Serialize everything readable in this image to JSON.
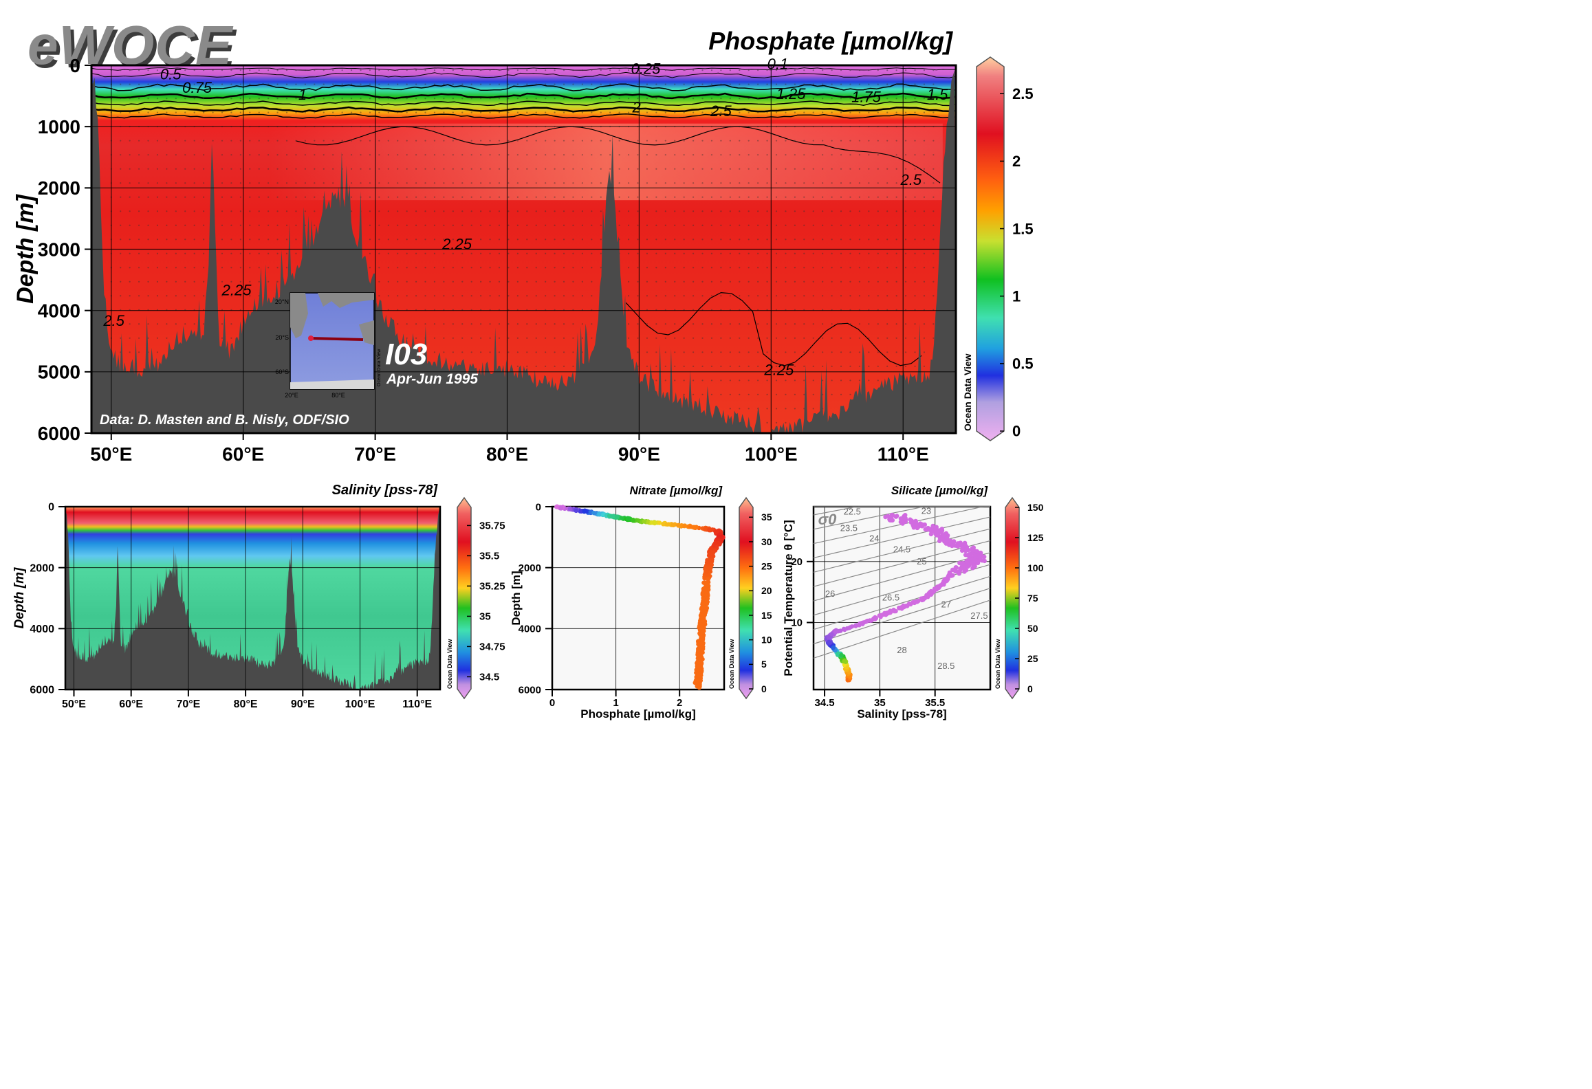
{
  "logo": "eWOCE",
  "chart_data": [
    {
      "id": "main-section",
      "type": "heatmap",
      "title": "Phosphate [µmol/kg]",
      "ylabel": "Depth [m]",
      "xlabel": "",
      "xlim": [
        48.5,
        114
      ],
      "ylim": [
        6000,
        0
      ],
      "x_ticks": [
        "50°E",
        "60°E",
        "70°E",
        "80°E",
        "90°E",
        "100°E",
        "110°E"
      ],
      "x_tick_values": [
        50,
        60,
        70,
        80,
        90,
        100,
        110
      ],
      "y_ticks": [
        "0",
        "1000",
        "2000",
        "3000",
        "4000",
        "5000",
        "6000"
      ],
      "y_tick_values": [
        0,
        1000,
        2000,
        3000,
        4000,
        5000,
        6000
      ],
      "colorbar": {
        "min": 0,
        "max": 2.7,
        "ticks": [
          "0",
          "0.5",
          "1",
          "1.5",
          "2",
          "2.5"
        ],
        "tick_values": [
          0,
          0.5,
          1,
          1.5,
          2,
          2.5
        ],
        "credit": "Ocean Data View"
      },
      "contour_labels": [
        {
          "text": "0.5",
          "x": 54.5,
          "depth": 230
        },
        {
          "text": "0.75",
          "x": 56.5,
          "depth": 450
        },
        {
          "text": "1",
          "x": 64.5,
          "depth": 560
        },
        {
          "text": "0.25",
          "x": 90.5,
          "depth": 140
        },
        {
          "text": "0.1",
          "x": 100.5,
          "depth": 60
        },
        {
          "text": "1.25",
          "x": 101.5,
          "depth": 550
        },
        {
          "text": "1.75",
          "x": 107.2,
          "depth": 600
        },
        {
          "text": "1.5",
          "x": 112.6,
          "depth": 560
        },
        {
          "text": "2",
          "x": 89.8,
          "depth": 770
        },
        {
          "text": "2.5",
          "x": 96.2,
          "depth": 830
        },
        {
          "text": "2.5",
          "x": 110.6,
          "depth": 1950
        },
        {
          "text": "2.25",
          "x": 76.2,
          "depth": 3000
        },
        {
          "text": "2.25",
          "x": 100.6,
          "depth": 5050
        },
        {
          "text": "2.25",
          "x": 59.5,
          "depth": 3750
        },
        {
          "text": "2.5",
          "x": 50.2,
          "depth": 4250
        }
      ],
      "credit": "Data: D. Masten and B. Nisly, ODF/SIO",
      "cruise": {
        "name": "I03",
        "dates": "Apr-Jun 1995"
      },
      "inset_map": {
        "lat_ticks": [
          "20°N",
          "20°S",
          "60°S"
        ],
        "lon_ticks": [
          "20°E",
          "80°E"
        ],
        "credit": "Ocean Data View"
      }
    },
    {
      "id": "salinity-section",
      "type": "heatmap",
      "title": "Salinity [pss-78]",
      "ylabel": "Depth [m]",
      "xlabel": "",
      "xlim": [
        48.5,
        114
      ],
      "ylim": [
        6000,
        0
      ],
      "x_ticks": [
        "50°E",
        "60°E",
        "70°E",
        "80°E",
        "90°E",
        "100°E",
        "110°E"
      ],
      "x_tick_values": [
        50,
        60,
        70,
        80,
        90,
        100,
        110
      ],
      "y_ticks": [
        "0",
        "2000",
        "4000",
        "6000"
      ],
      "y_tick_values": [
        0,
        2000,
        4000,
        6000
      ],
      "colorbar": {
        "min": 34.4,
        "max": 35.9,
        "ticks": [
          "34.5",
          "34.75",
          "35",
          "35.25",
          "35.5",
          "35.75"
        ],
        "tick_values": [
          34.5,
          34.75,
          35,
          35.25,
          35.5,
          35.75
        ],
        "credit": "Ocean Data View"
      }
    },
    {
      "id": "phosphate-profile",
      "type": "scatter",
      "title": "Nitrate [µmol/kg]",
      "xlabel": "Phosphate [µmol/kg]",
      "ylabel": "Depth [m]",
      "xlim": [
        0,
        2.7
      ],
      "ylim": [
        6000,
        0
      ],
      "x_ticks": [
        "0",
        "1",
        "2"
      ],
      "x_tick_values": [
        0,
        1,
        2
      ],
      "y_ticks": [
        "0",
        "2000",
        "4000",
        "6000"
      ],
      "y_tick_values": [
        0,
        2000,
        4000,
        6000
      ],
      "color_by": "Nitrate",
      "colorbar": {
        "min": 0,
        "max": 37,
        "ticks": [
          "0",
          "5",
          "10",
          "15",
          "20",
          "25",
          "30",
          "35"
        ],
        "tick_values": [
          0,
          5,
          10,
          15,
          20,
          25,
          30,
          35
        ],
        "credit": "Ocean Data View"
      },
      "points": [
        [
          0.1,
          0,
          0
        ],
        [
          0.2,
          50,
          1
        ],
        [
          0.35,
          100,
          3
        ],
        [
          0.5,
          150,
          6
        ],
        [
          0.65,
          200,
          9
        ],
        [
          0.8,
          260,
          12
        ],
        [
          0.95,
          320,
          15
        ],
        [
          1.1,
          380,
          17
        ],
        [
          1.25,
          430,
          19
        ],
        [
          1.4,
          480,
          21
        ],
        [
          1.6,
          520,
          24
        ],
        [
          1.8,
          560,
          27
        ],
        [
          2.0,
          610,
          29
        ],
        [
          2.2,
          660,
          31
        ],
        [
          2.4,
          720,
          33
        ],
        [
          2.6,
          800,
          35
        ],
        [
          2.65,
          1000,
          36
        ],
        [
          2.6,
          1200,
          35
        ],
        [
          2.5,
          1500,
          34
        ],
        [
          2.45,
          2000,
          33
        ],
        [
          2.42,
          2500,
          32
        ],
        [
          2.4,
          3000,
          32
        ],
        [
          2.38,
          3500,
          32
        ],
        [
          2.35,
          4000,
          32
        ],
        [
          2.33,
          4500,
          32
        ],
        [
          2.32,
          5000,
          32
        ],
        [
          2.3,
          5500,
          32
        ],
        [
          2.28,
          5950,
          32
        ]
      ]
    },
    {
      "id": "ts-diagram",
      "type": "scatter",
      "title": "Silicate [µmol/kg]",
      "xlabel": "Salinity [pss-78]",
      "ylabel": "Potential Temperature θ [°C]",
      "xlim": [
        34.4,
        36.0
      ],
      "ylim": [
        -1,
        29
      ],
      "x_ticks": [
        "34.5",
        "35",
        "35.5"
      ],
      "x_tick_values": [
        34.5,
        35,
        35.5
      ],
      "y_ticks": [
        "10",
        "20"
      ],
      "y_tick_values": [
        10,
        20
      ],
      "isopycnal_symbol": "σ0",
      "isopycnals": [
        "22.5",
        "23",
        "23.5",
        "24",
        "24.5",
        "25",
        "26",
        "26.5",
        "27",
        "27.5",
        "28",
        "28.5"
      ],
      "color_by": "Silicate",
      "colorbar": {
        "min": 0,
        "max": 150,
        "ticks": [
          "0",
          "25",
          "50",
          "75",
          "100",
          "125",
          "150"
        ],
        "tick_values": [
          0,
          25,
          50,
          75,
          100,
          125,
          150
        ],
        "credit": "Ocean Data View"
      },
      "points": [
        [
          34.72,
          0.5,
          130
        ],
        [
          34.72,
          1.5,
          120
        ],
        [
          34.7,
          2.5,
          110
        ],
        [
          34.68,
          3.5,
          90
        ],
        [
          34.65,
          4.5,
          70
        ],
        [
          34.6,
          5.5,
          40
        ],
        [
          34.55,
          6.5,
          20
        ],
        [
          34.53,
          7.5,
          10
        ],
        [
          34.6,
          8.5,
          5
        ],
        [
          34.8,
          9.5,
          3
        ],
        [
          35.0,
          11,
          2
        ],
        [
          35.2,
          12.5,
          2
        ],
        [
          35.4,
          14,
          2
        ],
        [
          35.55,
          16,
          2
        ],
        [
          35.65,
          18,
          2
        ],
        [
          35.8,
          19.5,
          2
        ],
        [
          35.9,
          20.5,
          2
        ],
        [
          35.8,
          22,
          2
        ],
        [
          35.6,
          23.5,
          2
        ],
        [
          35.5,
          25,
          2
        ],
        [
          35.3,
          26.5,
          2
        ],
        [
          35.1,
          27.5,
          2
        ]
      ]
    }
  ]
}
